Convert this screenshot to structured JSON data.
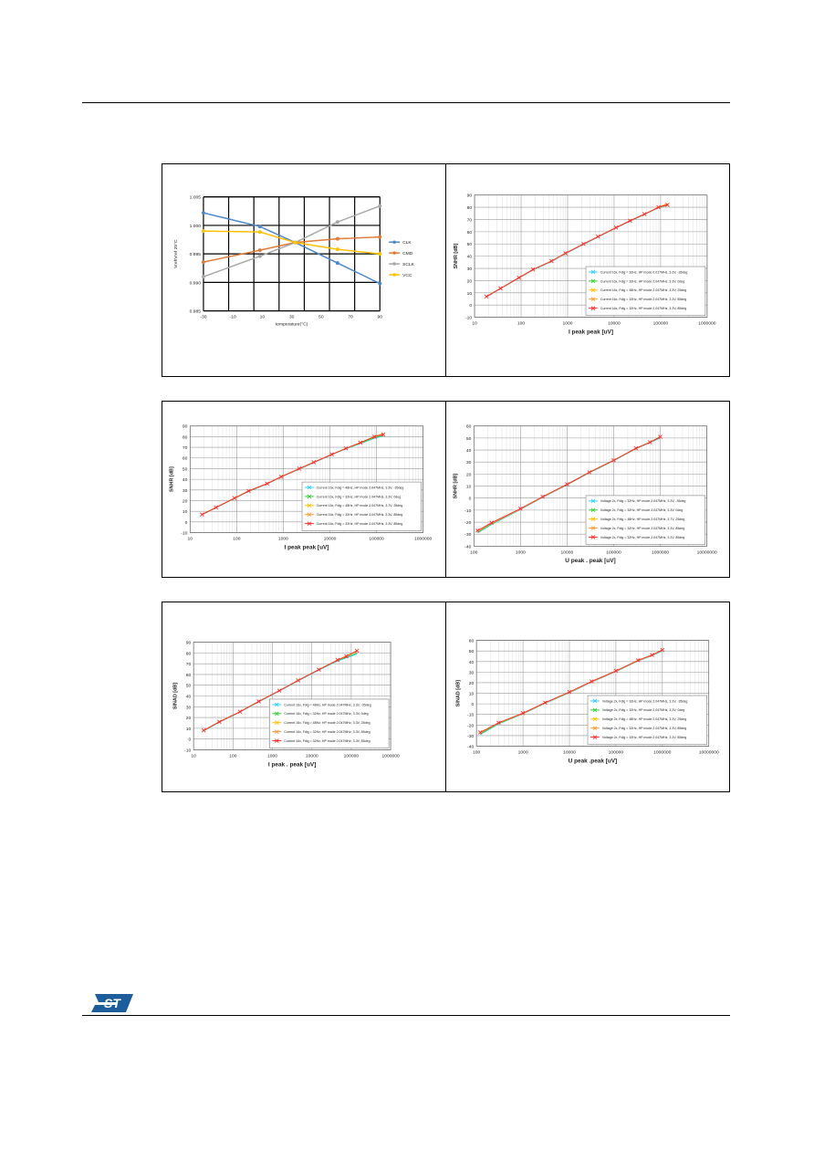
{
  "page": {
    "logo": "ST"
  },
  "colors": {
    "blue": "#4f86c6",
    "orange": "#e07b39",
    "grey": "#a8a8a8",
    "yellow": "#ffc000",
    "cyan": "#33ccff",
    "green": "#33cc33",
    "lightorange": "#ff9933",
    "red": "#ff2a2a"
  },
  "chart_data": [
    {
      "type": "line",
      "id": "temp",
      "xlabel": "temperature(°C)",
      "ylabel": "Vref/Vref 25°C",
      "categories": [
        -30,
        -10,
        10,
        30,
        50,
        70,
        90
      ],
      "xticks": [
        "-30",
        "-10",
        "10",
        "30",
        "50",
        "70",
        "90"
      ],
      "ylim": [
        0.985,
        1.01
      ],
      "yticks": [
        "0.985",
        "0.990",
        "0.995",
        "1.000",
        "1.005"
      ],
      "x": [
        -40,
        0,
        25,
        55,
        85
      ],
      "series": [
        {
          "name": "CLK",
          "color": "#4f86c6",
          "values": [
            1.0065,
            1.0035,
            1.0,
            0.9955,
            0.991
          ]
        },
        {
          "name": "CMD",
          "color": "#e07b39",
          "values": [
            0.9957,
            0.9983,
            1.0,
            1.0008,
            1.0012
          ]
        },
        {
          "name": "SCLK",
          "color": "#a8a8a8",
          "values": [
            0.9925,
            0.997,
            1.0,
            1.0045,
            1.008
          ]
        },
        {
          "name": "VCC",
          "color": "#ffc000",
          "values": [
            1.0025,
            1.0023,
            1.0,
            0.9985,
            0.9975
          ]
        }
      ]
    },
    {
      "type": "line",
      "id": "snr-current",
      "xlabel": "I peak peak [uV]",
      "ylabel": "SNHR [dB]",
      "xlog": true,
      "xlim": [
        10,
        1000000
      ],
      "xticks": [
        "10",
        "100",
        "1000",
        "10000",
        "100000",
        "1000000"
      ],
      "ylim": [
        -10,
        90
      ],
      "yticks": [
        "-10",
        "0",
        "10",
        "20",
        "30",
        "40",
        "50",
        "60",
        "70",
        "80",
        "90"
      ],
      "x": [
        18,
        36,
        90,
        180,
        450,
        900,
        2200,
        4500,
        11000,
        22000,
        45000,
        90000,
        140000
      ],
      "legend": [
        "Current 16x, Fdig = 32Hz, HP mode 0.017MHz, 3.3V, -35deg",
        "Current 16x, Fdig = 32Hz, HP mode 2.047MHz, 3.3V, 0deg",
        "Current 16x, Fdig = 48Hz, HP mode 2.047MHz, 3.3V, 25deg",
        "Current 16x, Fdig = 32Hz, HP mode 2.047MHz, 3.3V, 85deg",
        "Current 16x, Fdig = 32Hz, HP mode 2.047MHz, 3.3V, 85deg"
      ],
      "series": [
        {
          "name": "s1",
          "color": "#33ccff",
          "values": [
            6.5,
            13.3,
            22,
            28.5,
            35.5,
            42,
            49.5,
            55.5,
            63,
            68.5,
            74,
            79.5,
            82
          ]
        },
        {
          "name": "s2",
          "color": "#33cc33",
          "values": [
            6.8,
            13.5,
            22.2,
            28.8,
            35.8,
            42.2,
            49.8,
            55.8,
            63.2,
            68.8,
            74.2,
            79.8,
            81.5
          ]
        },
        {
          "name": "s3",
          "color": "#ffc000",
          "values": [
            7,
            13.6,
            22.4,
            29,
            36,
            42.4,
            50,
            56,
            63.4,
            69,
            74.4,
            80,
            82.5
          ]
        },
        {
          "name": "s4",
          "color": "#ff9933",
          "values": [
            6.9,
            13.5,
            22.3,
            29,
            36,
            42.3,
            50,
            56,
            63.3,
            69,
            74.3,
            80,
            83
          ]
        },
        {
          "name": "s5",
          "color": "#ff2a2a",
          "values": [
            7,
            13.6,
            22.4,
            29.1,
            36,
            42.4,
            50,
            56,
            63.4,
            69,
            74.4,
            80,
            82
          ]
        }
      ]
    },
    {
      "type": "line",
      "id": "snhr-current",
      "xlabel": "I peak peak [uV]",
      "ylabel": "SNHR [dB]",
      "xlog": true,
      "xlim": [
        10,
        1000000
      ],
      "xticks": [
        "10",
        "100",
        "1000",
        "10000",
        "100000",
        "1000000"
      ],
      "ylim": [
        -10,
        90
      ],
      "yticks": [
        "-10",
        "0",
        "10",
        "20",
        "30",
        "40",
        "50",
        "60",
        "70",
        "80",
        "90"
      ],
      "x": [
        18,
        36,
        90,
        180,
        450,
        900,
        2200,
        4500,
        11000,
        22000,
        45000,
        90000,
        140000
      ],
      "legend": [
        "Current 16x, Fdig = 48Hz, HP mode 2.047MHz, 3.3V, -35deg",
        "Current 16x, Fdig = 32Hz, HP mode 2.047MHz, 3.3V, 0deg",
        "Current 16x, Fdig = 48Hz, HP mode 2.047MHz, 3.7V, 25deg",
        "Current 16x, Fdig = 32Hz, HP mode 2.047MHz, 3.3V, 85deg",
        "Current 16x, Fdig = 32Hz, HP mode 2.047MHz, 3.3V, 85deg"
      ],
      "series": [
        {
          "name": "s1",
          "color": "#33ccff",
          "values": [
            6.5,
            13.3,
            22,
            28.5,
            35.5,
            42,
            49.5,
            55.5,
            63,
            68.5,
            73.5,
            78.5,
            80.5
          ]
        },
        {
          "name": "s2",
          "color": "#33cc33",
          "values": [
            6.8,
            13.5,
            22.2,
            28.8,
            35.8,
            42.2,
            49.8,
            55.8,
            63.2,
            68.8,
            73.8,
            79,
            81
          ]
        },
        {
          "name": "s3",
          "color": "#ffc000",
          "values": [
            7,
            13.6,
            22.4,
            29,
            36,
            42.4,
            50,
            56,
            63.4,
            69,
            74.4,
            80,
            82.5
          ]
        },
        {
          "name": "s4",
          "color": "#ff9933",
          "values": [
            6.9,
            13.5,
            22.3,
            29,
            36,
            42.3,
            50,
            56,
            63.3,
            69,
            74.3,
            80,
            83
          ]
        },
        {
          "name": "s5",
          "color": "#ff2a2a",
          "values": [
            7,
            13.6,
            22.4,
            29.1,
            36,
            42.4,
            50,
            56,
            63.4,
            69,
            74.4,
            80,
            82
          ]
        }
      ]
    },
    {
      "type": "line",
      "id": "snr-voltage",
      "xlabel": "U peak . peak [uV]",
      "ylabel": "SNHR [dB]",
      "xlog": true,
      "xlim": [
        100,
        10000000
      ],
      "xticks": [
        "100",
        "1000",
        "10000",
        "100000",
        "1000000",
        "10000000"
      ],
      "ylim": [
        -40,
        60
      ],
      "yticks": [
        "-40",
        "-30",
        "-20",
        "-10",
        "0",
        "10",
        "20",
        "30",
        "40",
        "50",
        "60"
      ],
      "x": [
        120,
        240,
        1000,
        3000,
        10000,
        30000,
        100000,
        300000,
        600000,
        1000000
      ],
      "legend": [
        "Voltage 2x, Fdig = 32Hz, HP mode 2.047MHz, 3.3V, -35deg",
        "Voltage 2x, Fdig = 32Hz, HP mode 2.047MHz, 3.3V, 0deg",
        "Voltage 2x, Fdig = 48Hz, HP mode 2.047MHz, 3.7V, 25deg",
        "Voltage 2x, Fdig = 32Hz, HP mode 2.047MHz, 3.3V, 85deg",
        "Voltage 2x, Fdig = 32Hz, HP mode 2.047MHz, 3.3V, 85deg"
      ],
      "series": [
        {
          "name": "s1",
          "color": "#33ccff",
          "values": [
            -29,
            -22,
            -9.5,
            0.5,
            11,
            21,
            31,
            41,
            46,
            50
          ]
        },
        {
          "name": "s2",
          "color": "#33cc33",
          "values": [
            -28.5,
            -21.5,
            -9.2,
            0.8,
            11.2,
            21.2,
            31.2,
            41.2,
            46.2,
            50.5
          ]
        },
        {
          "name": "s3",
          "color": "#ffc000",
          "values": [
            -27,
            -21,
            -9,
            1,
            11.4,
            21.4,
            31.4,
            41.4,
            46.4,
            51
          ]
        },
        {
          "name": "s4",
          "color": "#ff9933",
          "values": [
            -27.5,
            -21,
            -9,
            1,
            11.4,
            21.4,
            31.4,
            41.4,
            46.4,
            51
          ]
        },
        {
          "name": "s5",
          "color": "#ff2a2a",
          "values": [
            -27,
            -20.5,
            -8.8,
            1.2,
            11.5,
            21.5,
            31.5,
            41.5,
            46.5,
            51
          ]
        }
      ]
    },
    {
      "type": "line",
      "id": "sinad-current",
      "xlabel": "I peak . peak [uV]",
      "ylabel": "SINAD [dB]",
      "xlog": true,
      "xlim": [
        10,
        1000000
      ],
      "xticks": [
        "10",
        "100",
        "1000",
        "10000",
        "100000",
        "1000000"
      ],
      "ylim": [
        -10,
        90
      ],
      "yticks": [
        "-10",
        "0",
        "10",
        "20",
        "30",
        "40",
        "50",
        "60",
        "70",
        "80",
        "90"
      ],
      "x": [
        18,
        45,
        150,
        450,
        1500,
        4500,
        15000,
        45000,
        75000,
        140000
      ],
      "legend": [
        "Current 16x, Fdig = 48Hz, HP mode 2.047MHz, 3.3V, -35deg",
        "Current 16x, Fdig = 32Hz, HP mode 2.047MHz, 3.3V, 0deg",
        "Current 16x, Fdig = 48Hz, HP mode 2.047MHz, 3.3V, 25deg",
        "Current 16x, Fdig = 32Hz, HP mode 2.047MHz, 3.3V, 85deg",
        "Current 16x, Fdig = 32Hz, HP mode 2.047MHz, 3.3V, 85deg"
      ],
      "series": [
        {
          "name": "s1",
          "color": "#33ccff",
          "values": [
            7.5,
            15.5,
            25,
            34.5,
            44.5,
            54,
            64,
            72.5,
            75.5,
            79
          ]
        },
        {
          "name": "s2",
          "color": "#33cc33",
          "values": [
            7.8,
            15.8,
            25.2,
            34.8,
            44.8,
            54.3,
            64.3,
            73,
            76,
            80
          ]
        },
        {
          "name": "s3",
          "color": "#ffc000",
          "values": [
            8,
            16,
            25.4,
            35,
            45,
            54.5,
            64.5,
            73.5,
            77,
            81.5
          ]
        },
        {
          "name": "s4",
          "color": "#ff9933",
          "values": [
            8,
            16,
            25.4,
            35,
            45,
            54.5,
            64.5,
            73.5,
            77,
            82
          ]
        },
        {
          "name": "s5",
          "color": "#ff2a2a",
          "values": [
            8,
            16,
            25.4,
            35,
            45,
            54.5,
            64.5,
            73.5,
            77,
            82
          ]
        }
      ]
    },
    {
      "type": "line",
      "id": "sinad-voltage",
      "xlabel": "U peak .peak [uV]",
      "ylabel": "SINAD [dB]",
      "xlog": true,
      "xlim": [
        100,
        10000000
      ],
      "xticks": [
        "100",
        "1000",
        "10000",
        "100000",
        "1000000",
        "10000000"
      ],
      "ylim": [
        -40,
        60
      ],
      "yticks": [
        "-40",
        "-30",
        "-20",
        "-10",
        "0",
        "10",
        "20",
        "30",
        "40",
        "50",
        "60"
      ],
      "x": [
        120,
        300,
        1000,
        3000,
        10000,
        30000,
        100000,
        300000,
        600000,
        1000000
      ],
      "legend": [
        "Voltage 2x, Fdig = 32Hz, HP mode 2.047MHz, 3.3V, -35deg",
        "Voltage 2x, Fdig = 32Hz, HP mode 2.047MHz, 3.3V, 0deg",
        "Voltage 2x, Fdig = 48Hz, HP mode 2.047MHz, 3.3V, 25deg",
        "Voltage 2x, Fdig = 32Hz, HP mode 2.047MHz, 3.3V, 85deg",
        "Voltage 2x, Fdig = 32Hz, HP mode 2.047MHz, 3.3V, 85deg"
      ],
      "series": [
        {
          "name": "s1",
          "color": "#33ccff",
          "values": [
            -29,
            -19,
            -9.5,
            0.5,
            10.5,
            20.5,
            30.5,
            40.5,
            45.5,
            50
          ]
        },
        {
          "name": "s2",
          "color": "#33cc33",
          "values": [
            -28.5,
            -18.5,
            -9.2,
            0.8,
            10.8,
            20.8,
            30.8,
            40.8,
            45.8,
            50.5
          ]
        },
        {
          "name": "s3",
          "color": "#ffc000",
          "values": [
            -27,
            -18,
            -9,
            1,
            11,
            21,
            31,
            41,
            46,
            51
          ]
        },
        {
          "name": "s4",
          "color": "#ff9933",
          "values": [
            -27.5,
            -18,
            -9,
            1,
            11,
            21,
            31,
            41,
            46,
            51
          ]
        },
        {
          "name": "s5",
          "color": "#ff2a2a",
          "values": [
            -27,
            -17.8,
            -8.8,
            1.2,
            11.2,
            21.2,
            31.2,
            41.2,
            46.2,
            51
          ]
        }
      ]
    }
  ]
}
